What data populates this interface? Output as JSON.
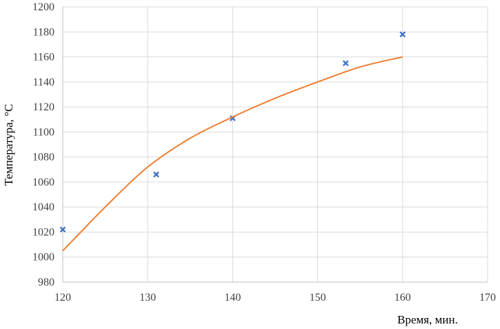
{
  "chart_data": {
    "type": "scatter",
    "xlabel": "Время, мин.",
    "ylabel": "Температура, °C",
    "xlim": [
      120,
      170
    ],
    "ylim": [
      980,
      1200
    ],
    "x_ticks": [
      "120",
      "130",
      "140",
      "150",
      "160",
      "170"
    ],
    "y_ticks": [
      "980",
      "1000",
      "1020",
      "1040",
      "1060",
      "1080",
      "1100",
      "1120",
      "1140",
      "1160",
      "1180",
      "1200"
    ],
    "grid": true,
    "series": [
      {
        "kind": "markers",
        "marker": "x",
        "color": "#4472c4",
        "points": [
          {
            "x": 120,
            "y": 1022
          },
          {
            "x": 131,
            "y": 1066
          },
          {
            "x": 140,
            "y": 1111
          },
          {
            "x": 153.3,
            "y": 1155
          },
          {
            "x": 160,
            "y": 1178
          }
        ]
      },
      {
        "kind": "line",
        "color": "#ed7d31",
        "points": [
          {
            "x": 120,
            "y": 1005
          },
          {
            "x": 125,
            "y": 1040
          },
          {
            "x": 130,
            "y": 1072
          },
          {
            "x": 135,
            "y": 1095
          },
          {
            "x": 140,
            "y": 1112
          },
          {
            "x": 145,
            "y": 1127
          },
          {
            "x": 150,
            "y": 1140
          },
          {
            "x": 155,
            "y": 1152
          },
          {
            "x": 160,
            "y": 1160
          }
        ]
      }
    ]
  }
}
